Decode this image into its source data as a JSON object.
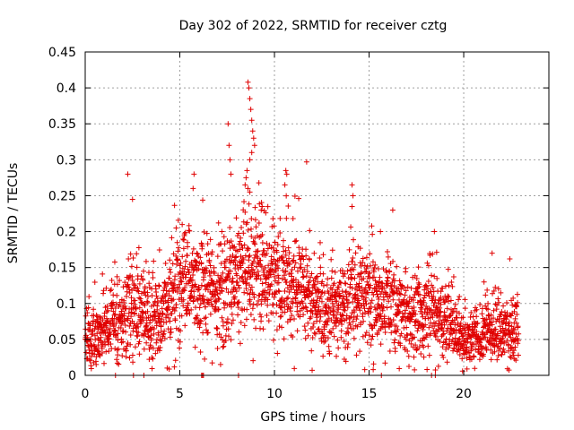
{
  "chart_data": {
    "type": "scatter",
    "title": "Day 302 of 2022, SRMTID for receiver cztg",
    "xlabel": "GPS time / hours",
    "ylabel": "SRMTID / TECUs",
    "xlim": [
      0,
      24.5
    ],
    "ylim": [
      0,
      0.45
    ],
    "xticks": [
      0,
      5,
      10,
      15,
      20
    ],
    "xtick_labels": [
      "0",
      "5",
      "10",
      "15",
      "20"
    ],
    "yticks": [
      0,
      0.05,
      0.1,
      0.15,
      0.2,
      0.25,
      0.3,
      0.35,
      0.4,
      0.45
    ],
    "ytick_labels": [
      "0",
      "0.05",
      "0.1",
      "0.15",
      "0.2",
      "0.25",
      "0.3",
      "0.35",
      "0.4",
      "0.45"
    ],
    "grid": true,
    "marker": "+",
    "color": "#e00000",
    "series": [
      {
        "name": "SRMTID",
        "baseline_profile": [
          [
            0.0,
            0.045
          ],
          [
            0.5,
            0.05
          ],
          [
            1.0,
            0.06
          ],
          [
            1.5,
            0.075
          ],
          [
            2.0,
            0.08
          ],
          [
            2.5,
            0.095
          ],
          [
            3.0,
            0.085
          ],
          [
            3.5,
            0.08
          ],
          [
            4.0,
            0.09
          ],
          [
            4.5,
            0.11
          ],
          [
            5.0,
            0.12
          ],
          [
            5.5,
            0.135
          ],
          [
            6.0,
            0.13
          ],
          [
            6.5,
            0.125
          ],
          [
            7.0,
            0.12
          ],
          [
            7.5,
            0.115
          ],
          [
            8.0,
            0.13
          ],
          [
            8.5,
            0.15
          ],
          [
            9.0,
            0.15
          ],
          [
            9.5,
            0.14
          ],
          [
            10.0,
            0.135
          ],
          [
            10.5,
            0.13
          ],
          [
            11.0,
            0.125
          ],
          [
            11.5,
            0.12
          ],
          [
            12.0,
            0.11
          ],
          [
            12.5,
            0.1
          ],
          [
            13.0,
            0.095
          ],
          [
            13.5,
            0.095
          ],
          [
            14.0,
            0.1
          ],
          [
            14.5,
            0.11
          ],
          [
            15.0,
            0.105
          ],
          [
            15.5,
            0.1
          ],
          [
            16.0,
            0.095
          ],
          [
            16.5,
            0.09
          ],
          [
            17.0,
            0.085
          ],
          [
            17.5,
            0.08
          ],
          [
            18.0,
            0.085
          ],
          [
            18.5,
            0.09
          ],
          [
            19.0,
            0.075
          ],
          [
            19.5,
            0.06
          ],
          [
            20.0,
            0.05
          ],
          [
            20.5,
            0.05
          ],
          [
            21.0,
            0.055
          ],
          [
            21.5,
            0.06
          ],
          [
            22.0,
            0.06
          ],
          [
            22.5,
            0.06
          ],
          [
            22.9,
            0.06
          ]
        ],
        "highlight_points": [
          [
            8.6,
            0.408
          ],
          [
            8.65,
            0.4
          ],
          [
            8.7,
            0.385
          ],
          [
            8.75,
            0.37
          ],
          [
            8.8,
            0.355
          ],
          [
            8.85,
            0.34
          ],
          [
            8.9,
            0.33
          ],
          [
            8.95,
            0.32
          ],
          [
            8.8,
            0.31
          ],
          [
            8.7,
            0.3
          ],
          [
            8.55,
            0.285
          ],
          [
            8.5,
            0.275
          ],
          [
            8.45,
            0.265
          ],
          [
            8.6,
            0.26
          ],
          [
            8.7,
            0.255
          ],
          [
            7.55,
            0.35
          ],
          [
            7.6,
            0.32
          ],
          [
            7.65,
            0.3
          ],
          [
            7.7,
            0.28
          ],
          [
            2.25,
            0.28
          ],
          [
            2.5,
            0.245
          ],
          [
            5.75,
            0.28
          ],
          [
            5.7,
            0.26
          ],
          [
            10.6,
            0.285
          ],
          [
            10.65,
            0.28
          ],
          [
            10.55,
            0.265
          ],
          [
            11.7,
            0.297
          ],
          [
            9.3,
            0.23
          ],
          [
            9.35,
            0.235
          ],
          [
            14.1,
            0.265
          ],
          [
            14.15,
            0.25
          ],
          [
            14.1,
            0.235
          ],
          [
            16.25,
            0.23
          ],
          [
            15.6,
            0.2
          ],
          [
            18.45,
            0.2
          ],
          [
            21.5,
            0.17
          ]
        ],
        "zero_points": [
          1.6,
          2.55,
          3.1,
          6.15,
          6.2,
          6.25,
          8.1,
          15.65,
          18.3,
          18.5
        ]
      }
    ]
  }
}
